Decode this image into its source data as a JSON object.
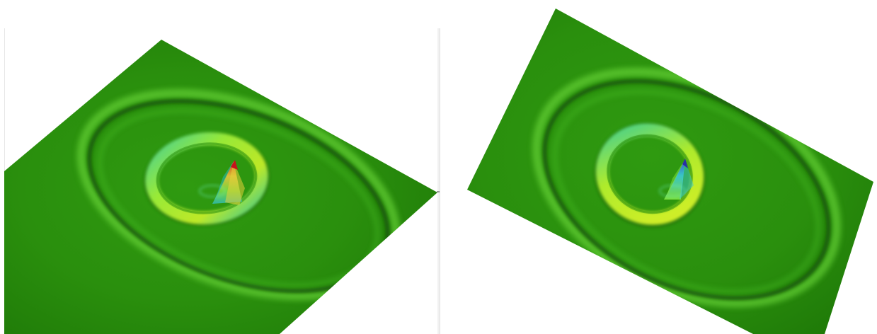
{
  "panels": [
    {
      "id": "left-render",
      "colormap": {
        "base": "#2f8f10",
        "ring_light": "#7de03a",
        "ring_shadow": "#1b5d08",
        "peak_top": "#d9381a",
        "peak_mid": "#e3c23a",
        "peak_base": "#2fb8a6"
      }
    },
    {
      "id": "right-render",
      "colormap": {
        "base": "#2f8f10",
        "ring_light": "#a8ef2e",
        "ring_shadow": "#1b5d08",
        "peak_top": "#3b4bd1",
        "peak_mid": "#39c7d1",
        "peak_base": "#7de03a"
      }
    }
  ]
}
